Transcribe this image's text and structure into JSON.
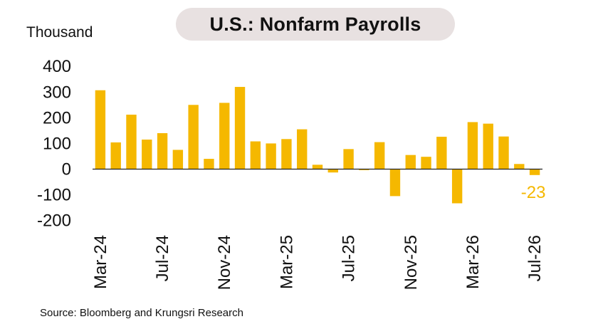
{
  "chart_data": {
    "type": "bar",
    "title": "U.S.: Nonfarm Payrolls",
    "ylabel": "Thousand",
    "ylim": [
      -200,
      400
    ],
    "yticks": [
      400,
      300,
      200,
      100,
      0,
      -100,
      -200
    ],
    "categories": [
      "Mar-24",
      "Apr-24",
      "May-24",
      "Jun-24",
      "Jul-24",
      "Aug-24",
      "Sep-24",
      "Oct-24",
      "Nov-24",
      "Dec-24",
      "Jan-25",
      "Feb-25",
      "Mar-25",
      "Apr-25",
      "May-25",
      "Jun-25",
      "Jul-25",
      "Aug-25",
      "Sep-25",
      "Oct-25",
      "Nov-25",
      "Dec-25",
      "Jan-26",
      "Feb-26",
      "Mar-26",
      "Apr-26",
      "May-26",
      "Jun-26",
      "Jul-26"
    ],
    "xtick_labels": [
      "Mar-24",
      "Jul-24",
      "Nov-24",
      "Mar-25",
      "Jul-25",
      "Nov-25",
      "Mar-26",
      "Jul-26"
    ],
    "values": [
      307,
      104,
      212,
      115,
      140,
      75,
      250,
      40,
      258,
      320,
      108,
      100,
      117,
      155,
      17,
      -13,
      78,
      -4,
      105,
      -105,
      55,
      48,
      126,
      -133,
      183,
      177,
      127,
      20,
      -23
    ],
    "bar_color": "#f5b800",
    "data_labels": [
      {
        "index": 28,
        "text": "-23"
      }
    ],
    "grid": false,
    "source": "Source: Bloomberg and Krungsri Research"
  }
}
